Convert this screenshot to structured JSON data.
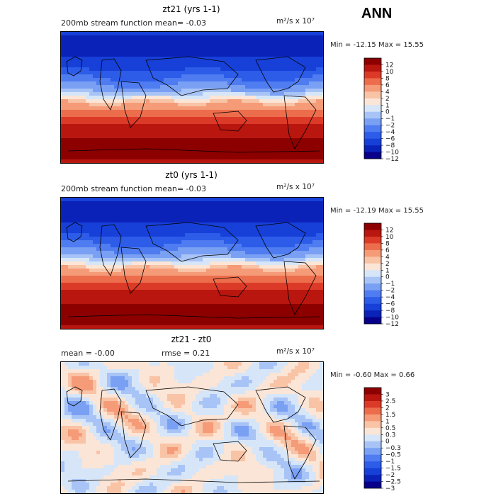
{
  "season": "ANN",
  "panels": [
    {
      "title": "zt21 (yrs 1-1)",
      "subtitle": "200mb stream function  mean=  -0.03",
      "left_stat": "",
      "right_stat": "",
      "units": "m²/s x 10⁷",
      "min": "-12.15",
      "max": "15.55",
      "kind": "field"
    },
    {
      "title": "zt0 (yrs 1-1)",
      "subtitle": "200mb stream function  mean=  -0.03",
      "left_stat": "",
      "right_stat": "",
      "units": "m²/s x 10⁷",
      "min": "-12.19",
      "max": "15.55",
      "kind": "field"
    },
    {
      "title": "zt21 - zt0",
      "subtitle": "",
      "left_stat": "mean =   -0.00",
      "right_stat": "rmse =    0.21",
      "units": "m²/s x 10⁷",
      "min": "-0.60",
      "max": "0.66",
      "kind": "diff"
    }
  ],
  "minmax_labels": {
    "min": "Min =",
    "max": "Max ="
  },
  "chart_data": [
    {
      "type": "heatmap",
      "title": "zt21 (yrs 1-1)",
      "variable": "200mb stream function",
      "mean": -0.03,
      "units": "m^2/s x 10^7",
      "min": -12.15,
      "max": 15.55,
      "levels": [
        -12,
        -10,
        -8,
        -6,
        -4,
        -2,
        -1,
        0,
        1,
        2,
        4,
        6,
        8,
        10,
        12
      ],
      "colorbar_labels": [
        "12",
        "10",
        "8",
        "6",
        "4",
        "2",
        "1",
        "0",
        "−1",
        "−2",
        "−4",
        "−6",
        "−8",
        "−10",
        "−12"
      ],
      "colors": [
        "#08008a",
        "#0a22b8",
        "#1740d8",
        "#2c5ce8",
        "#4f7cf0",
        "#7aa0f4",
        "#a8c4f6",
        "#d6e6f8",
        "#fbe5d6",
        "#f9c3a6",
        "#f59b78",
        "#ec6d4c",
        "#dc3a28",
        "#b8160f",
        "#8c0000"
      ]
    },
    {
      "type": "heatmap",
      "title": "zt0 (yrs 1-1)",
      "variable": "200mb stream function",
      "mean": -0.03,
      "units": "m^2/s x 10^7",
      "min": -12.19,
      "max": 15.55,
      "levels": [
        -12,
        -10,
        -8,
        -6,
        -4,
        -2,
        -1,
        0,
        1,
        2,
        4,
        6,
        8,
        10,
        12
      ],
      "colorbar_labels": [
        "12",
        "10",
        "8",
        "6",
        "4",
        "2",
        "1",
        "0",
        "−1",
        "−2",
        "−4",
        "−6",
        "−8",
        "−10",
        "−12"
      ],
      "colors": [
        "#08008a",
        "#0a22b8",
        "#1740d8",
        "#2c5ce8",
        "#4f7cf0",
        "#7aa0f4",
        "#a8c4f6",
        "#d6e6f8",
        "#fbe5d6",
        "#f9c3a6",
        "#f59b78",
        "#ec6d4c",
        "#dc3a28",
        "#b8160f",
        "#8c0000"
      ]
    },
    {
      "type": "heatmap",
      "title": "zt21 - zt0",
      "mean": -0.0,
      "rmse": 0.21,
      "units": "m^2/s x 10^7",
      "min": -0.6,
      "max": 0.66,
      "levels": [
        -3,
        -2.5,
        -2,
        -1.5,
        -1,
        -0.5,
        -0.3,
        0,
        0.3,
        0.5,
        1,
        1.5,
        2,
        2.5,
        3
      ],
      "colorbar_labels": [
        "3",
        "2.5",
        "2",
        "1.5",
        "1",
        "0.5",
        "0.3",
        "0",
        "−0.3",
        "−0.5",
        "−1",
        "−1.5",
        "−2",
        "−2.5",
        "−3"
      ],
      "colors": [
        "#08008a",
        "#0a22b8",
        "#1740d8",
        "#2c5ce8",
        "#4f7cf0",
        "#7aa0f4",
        "#a8c4f6",
        "#d6e6f8",
        "#fbe5d6",
        "#f9c3a6",
        "#f59b78",
        "#ec6d4c",
        "#dc3a28",
        "#b8160f",
        "#8c0000"
      ]
    }
  ]
}
